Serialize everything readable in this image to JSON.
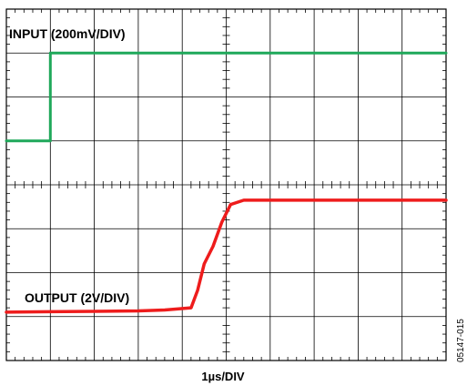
{
  "chart_data": {
    "type": "line",
    "xlabel": "1µs/DIV",
    "grid": true,
    "x_divisions": 10,
    "y_divisions": 8,
    "series": [
      {
        "name": "INPUT (200mV/DIV)",
        "color": "#1fa85a",
        "x": [
          0,
          1,
          1,
          10
        ],
        "y": [
          5,
          5,
          7,
          7
        ]
      },
      {
        "name": "OUTPUT (2V/DIV)",
        "color": "#ee1c1c",
        "x": [
          0,
          1,
          2,
          3,
          3.6,
          4.2,
          4.35,
          4.5,
          4.7,
          4.9,
          5.1,
          5.4,
          6,
          7,
          8,
          9,
          10
        ],
        "y": [
          1.1,
          1.11,
          1.12,
          1.13,
          1.15,
          1.2,
          1.6,
          2.2,
          2.6,
          3.15,
          3.55,
          3.65,
          3.65,
          3.65,
          3.65,
          3.65,
          3.65
        ]
      }
    ]
  },
  "figure_id": "05147-015"
}
